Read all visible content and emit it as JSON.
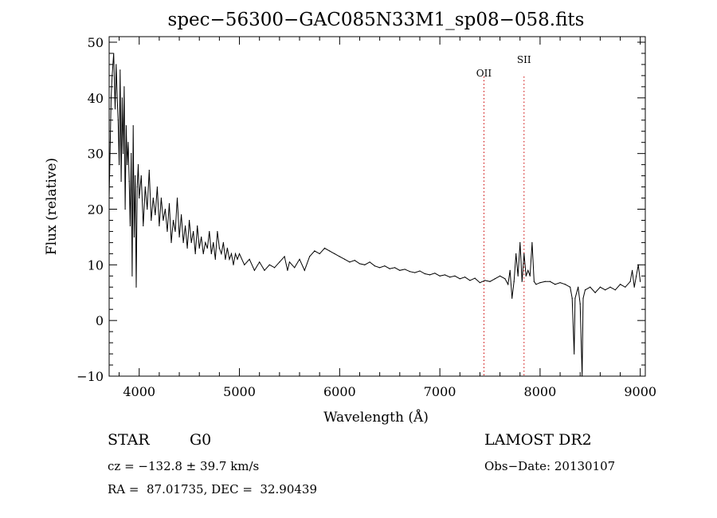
{
  "chart_data": {
    "type": "line",
    "title": "spec−56300−GAC085N33M1_sp08−058.fits",
    "xlabel": "Wavelength (Å)",
    "ylabel": "Flux (relative)",
    "xlim": [
      3700,
      9050
    ],
    "ylim": [
      -10,
      51
    ],
    "xticks": [
      4000,
      5000,
      6000,
      7000,
      8000,
      9000
    ],
    "yticks": [
      -10,
      0,
      10,
      20,
      30,
      40,
      50
    ],
    "xtick_labels": [
      "4000",
      "5000",
      "6000",
      "7000",
      "8000",
      "9000"
    ],
    "ytick_labels": [
      "−10",
      "0",
      "10",
      "20",
      "30",
      "40",
      "50"
    ],
    "grid": false,
    "colors": {
      "spectrum": "#000000",
      "line_markers": "#cc0000"
    },
    "annotations": [
      {
        "label": "OII",
        "x": 7440
      },
      {
        "label": "SII",
        "x": 7840
      }
    ],
    "series": [
      {
        "values": [
          [
            3700,
            22
          ],
          [
            3720,
            40
          ],
          [
            3730,
            44
          ],
          [
            3745,
            48
          ],
          [
            3760,
            38
          ],
          [
            3770,
            46
          ],
          [
            3780,
            40
          ],
          [
            3790,
            36
          ],
          [
            3800,
            28
          ],
          [
            3810,
            45
          ],
          [
            3820,
            25
          ],
          [
            3830,
            40
          ],
          [
            3840,
            30
          ],
          [
            3850,
            42
          ],
          [
            3860,
            20
          ],
          [
            3870,
            35
          ],
          [
            3880,
            28
          ],
          [
            3890,
            32
          ],
          [
            3900,
            25
          ],
          [
            3910,
            17
          ],
          [
            3920,
            30
          ],
          [
            3930,
            8
          ],
          [
            3940,
            35
          ],
          [
            3950,
            15
          ],
          [
            3960,
            26
          ],
          [
            3970,
            6
          ],
          [
            3980,
            24
          ],
          [
            3990,
            28
          ],
          [
            4000,
            22
          ],
          [
            4020,
            26
          ],
          [
            4040,
            17
          ],
          [
            4060,
            24
          ],
          [
            4080,
            20
          ],
          [
            4100,
            27
          ],
          [
            4120,
            18
          ],
          [
            4140,
            22
          ],
          [
            4160,
            19
          ],
          [
            4180,
            24
          ],
          [
            4200,
            17
          ],
          [
            4220,
            22
          ],
          [
            4240,
            18
          ],
          [
            4260,
            20
          ],
          [
            4280,
            16
          ],
          [
            4300,
            21
          ],
          [
            4320,
            14
          ],
          [
            4340,
            18
          ],
          [
            4360,
            16
          ],
          [
            4380,
            22
          ],
          [
            4400,
            15
          ],
          [
            4420,
            19
          ],
          [
            4440,
            14
          ],
          [
            4460,
            17
          ],
          [
            4480,
            13
          ],
          [
            4500,
            18
          ],
          [
            4520,
            14
          ],
          [
            4540,
            16
          ],
          [
            4560,
            12
          ],
          [
            4580,
            17
          ],
          [
            4600,
            13
          ],
          [
            4620,
            15
          ],
          [
            4640,
            12
          ],
          [
            4660,
            14
          ],
          [
            4680,
            13
          ],
          [
            4700,
            16
          ],
          [
            4720,
            12
          ],
          [
            4740,
            14
          ],
          [
            4760,
            11
          ],
          [
            4780,
            16
          ],
          [
            4800,
            13
          ],
          [
            4820,
            12
          ],
          [
            4840,
            14
          ],
          [
            4860,
            11
          ],
          [
            4880,
            13
          ],
          [
            4900,
            11
          ],
          [
            4920,
            12
          ],
          [
            4940,
            10
          ],
          [
            4960,
            12
          ],
          [
            4980,
            11
          ],
          [
            5000,
            12
          ],
          [
            5050,
            10
          ],
          [
            5100,
            11
          ],
          [
            5150,
            9
          ],
          [
            5200,
            10.5
          ],
          [
            5250,
            9
          ],
          [
            5300,
            10
          ],
          [
            5350,
            9.5
          ],
          [
            5400,
            10.5
          ],
          [
            5450,
            11.5
          ],
          [
            5480,
            9
          ],
          [
            5500,
            10.5
          ],
          [
            5550,
            9.5
          ],
          [
            5600,
            11
          ],
          [
            5650,
            9
          ],
          [
            5700,
            11.5
          ],
          [
            5750,
            12.5
          ],
          [
            5800,
            12
          ],
          [
            5850,
            13
          ],
          [
            5900,
            12.5
          ],
          [
            5950,
            12
          ],
          [
            6000,
            11.5
          ],
          [
            6050,
            11
          ],
          [
            6100,
            10.5
          ],
          [
            6150,
            10.8
          ],
          [
            6200,
            10.2
          ],
          [
            6250,
            10
          ],
          [
            6300,
            10.5
          ],
          [
            6350,
            9.8
          ],
          [
            6400,
            9.5
          ],
          [
            6450,
            9.8
          ],
          [
            6500,
            9.3
          ],
          [
            6550,
            9.5
          ],
          [
            6600,
            9
          ],
          [
            6650,
            9.2
          ],
          [
            6700,
            8.8
          ],
          [
            6750,
            8.6
          ],
          [
            6800,
            8.9
          ],
          [
            6850,
            8.4
          ],
          [
            6900,
            8.2
          ],
          [
            6950,
            8.5
          ],
          [
            7000,
            8
          ],
          [
            7050,
            8.2
          ],
          [
            7100,
            7.8
          ],
          [
            7150,
            8
          ],
          [
            7200,
            7.5
          ],
          [
            7250,
            7.8
          ],
          [
            7300,
            7.2
          ],
          [
            7350,
            7.6
          ],
          [
            7400,
            6.8
          ],
          [
            7450,
            7.2
          ],
          [
            7500,
            7
          ],
          [
            7550,
            7.5
          ],
          [
            7600,
            8
          ],
          [
            7650,
            7.5
          ],
          [
            7680,
            6.5
          ],
          [
            7700,
            9
          ],
          [
            7720,
            4
          ],
          [
            7740,
            7
          ],
          [
            7760,
            12
          ],
          [
            7780,
            8
          ],
          [
            7800,
            14
          ],
          [
            7820,
            7
          ],
          [
            7840,
            12
          ],
          [
            7860,
            8
          ],
          [
            7880,
            9
          ],
          [
            7900,
            8
          ],
          [
            7920,
            14
          ],
          [
            7940,
            7
          ],
          [
            7960,
            6.5
          ],
          [
            8000,
            6.8
          ],
          [
            8050,
            7
          ],
          [
            8100,
            7
          ],
          [
            8150,
            6.5
          ],
          [
            8200,
            6.8
          ],
          [
            8250,
            6.5
          ],
          [
            8300,
            6
          ],
          [
            8320,
            4
          ],
          [
            8340,
            -6
          ],
          [
            8350,
            4
          ],
          [
            8380,
            6
          ],
          [
            8400,
            3
          ],
          [
            8420,
            -10
          ],
          [
            8430,
            4
          ],
          [
            8450,
            5.5
          ],
          [
            8500,
            6
          ],
          [
            8550,
            5
          ],
          [
            8600,
            6
          ],
          [
            8650,
            5.5
          ],
          [
            8700,
            6
          ],
          [
            8750,
            5.5
          ],
          [
            8800,
            6.5
          ],
          [
            8850,
            6
          ],
          [
            8900,
            7
          ],
          [
            8920,
            9
          ],
          [
            8940,
            6
          ],
          [
            8960,
            8
          ],
          [
            8980,
            10
          ],
          [
            9000,
            7
          ]
        ]
      }
    ]
  },
  "footer": {
    "object_class": "STAR",
    "subclass": "G0",
    "survey": "LAMOST DR2",
    "redshift_line": "cz = −132.8 ± 39.7 km/s",
    "obs_date_line": "Obs−Date: 20130107",
    "coords_line": "RA =  87.01735, DEC =  32.90439"
  }
}
